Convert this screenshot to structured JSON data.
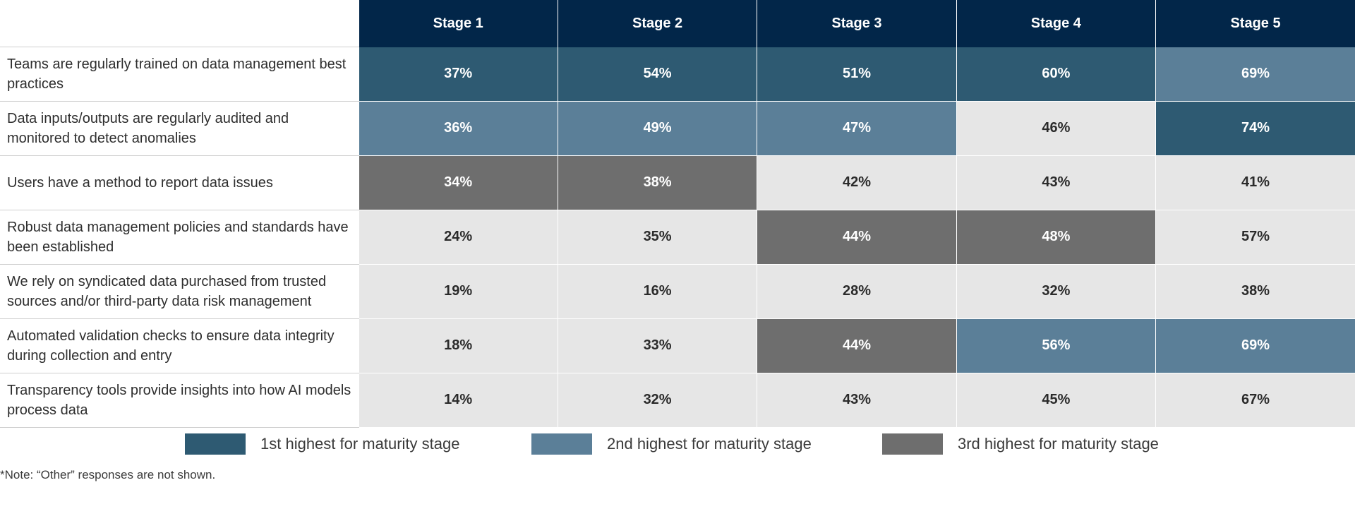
{
  "chart_data": {
    "type": "table",
    "columns": [
      "Stage 1",
      "Stage 2",
      "Stage 3",
      "Stage 4",
      "Stage 5"
    ],
    "rows": [
      {
        "label": "Teams are regularly trained on data management best practices",
        "values": [
          "37%",
          "54%",
          "51%",
          "60%",
          "69%"
        ],
        "rank": [
          1,
          1,
          1,
          1,
          2
        ]
      },
      {
        "label": "Data inputs/outputs are regularly audited and monitored to detect anomalies",
        "values": [
          "36%",
          "49%",
          "47%",
          "46%",
          "74%"
        ],
        "rank": [
          2,
          2,
          2,
          0,
          1
        ]
      },
      {
        "label": "Users have a method to report data issues",
        "values": [
          "34%",
          "38%",
          "42%",
          "43%",
          "41%"
        ],
        "rank": [
          3,
          3,
          0,
          0,
          0
        ]
      },
      {
        "label": "Robust data management policies and standards have been established",
        "values": [
          "24%",
          "35%",
          "44%",
          "48%",
          "57%"
        ],
        "rank": [
          0,
          0,
          3,
          3,
          0
        ]
      },
      {
        "label": "We rely on syndicated data purchased from trusted sources and/or third-party data risk management",
        "values": [
          "19%",
          "16%",
          "28%",
          "32%",
          "38%"
        ],
        "rank": [
          0,
          0,
          0,
          0,
          0
        ]
      },
      {
        "label": "Automated validation checks to ensure data integrity during collection and entry",
        "values": [
          "18%",
          "33%",
          "44%",
          "56%",
          "69%"
        ],
        "rank": [
          0,
          0,
          3,
          2,
          2
        ]
      },
      {
        "label": "Transparency tools provide insights into how AI models process data",
        "values": [
          "14%",
          "32%",
          "43%",
          "45%",
          "67%"
        ],
        "rank": [
          0,
          0,
          0,
          0,
          0
        ]
      }
    ],
    "legend": [
      {
        "label": "1st highest for maturity stage",
        "color": "#2e5a72"
      },
      {
        "label": "2nd highest for maturity stage",
        "color": "#5b7f98"
      },
      {
        "label": "3rd highest for maturity stage",
        "color": "#6e6e6e"
      }
    ],
    "colors": {
      "header": "#022649",
      "rank_1": "#2e5a72",
      "rank_2": "#5b7f98",
      "rank_3": "#6e6e6e",
      "default": "#e6e6e6"
    },
    "note": "*Note: “Other” responses are not shown."
  }
}
